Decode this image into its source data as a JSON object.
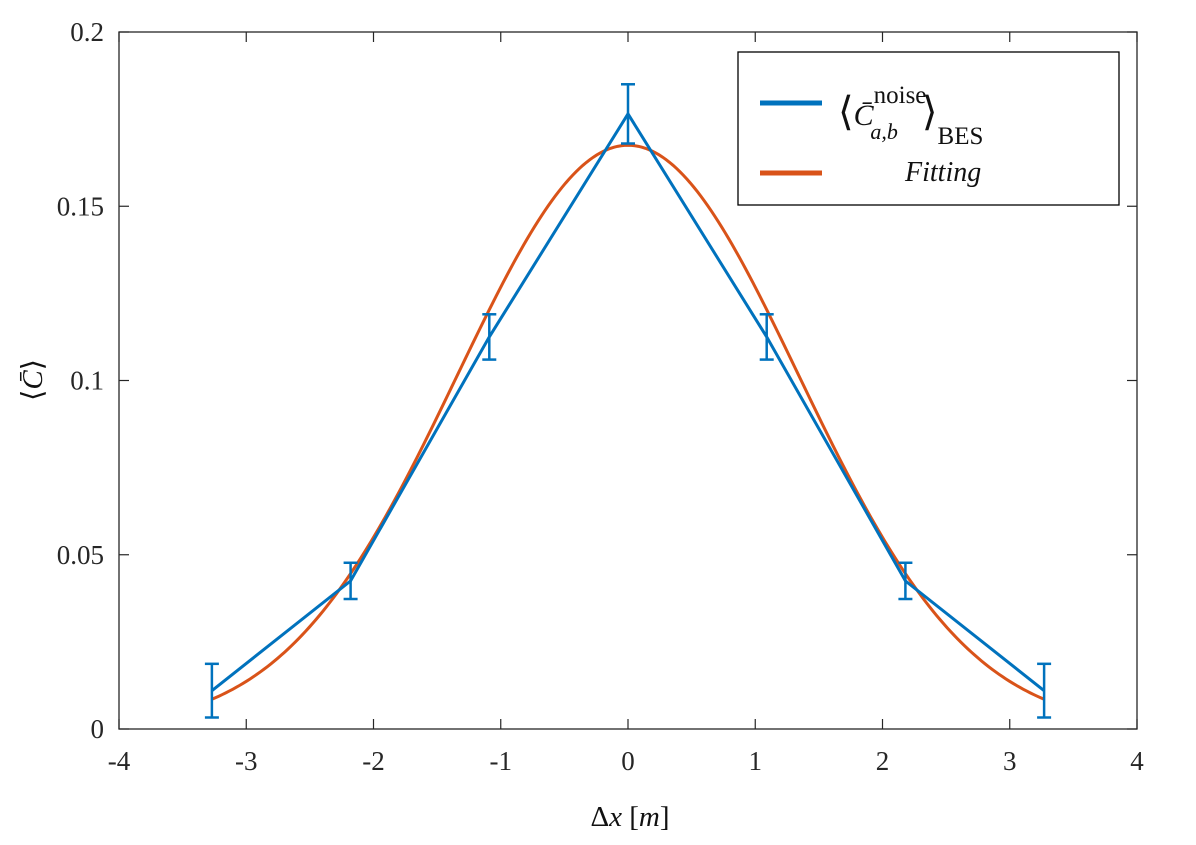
{
  "chart_data": {
    "type": "line",
    "xlabel": {
      "delta": "Δ",
      "var": "x",
      "unit": "m"
    },
    "ylabel": {
      "text": "C̄",
      "left": "⟨",
      "right": "⟩"
    },
    "xlim": [
      -4,
      4
    ],
    "ylim": [
      0,
      0.2
    ],
    "xticks": [
      -4,
      -3,
      -2,
      -1,
      0,
      1,
      2,
      3,
      4
    ],
    "yticks": [
      0,
      0.05,
      0.1,
      0.15,
      0.2
    ],
    "xtick_labels": [
      "-4",
      "-3",
      "-2",
      "-1",
      "0",
      "1",
      "2",
      "3",
      "4"
    ],
    "ytick_labels": [
      "0",
      "0.05",
      "0.1",
      "0.15",
      "0.2"
    ],
    "series": [
      {
        "name": "⟨C̄ noise a,b⟩ BES",
        "color": "#0072BD",
        "x": [
          -3.27,
          -2.18,
          -1.09,
          0,
          1.09,
          2.18,
          3.27
        ],
        "y": [
          0.011,
          0.0425,
          0.1125,
          0.1765,
          0.1125,
          0.0425,
          0.011
        ],
        "err": [
          0.0077,
          0.0052,
          0.0065,
          0.0085,
          0.0065,
          0.0052,
          0.0077
        ]
      },
      {
        "name": "Fitting",
        "color": "#D95319",
        "model": "gaussian",
        "amplitude": 0.1675,
        "sigma": 1.34,
        "x_range": [
          -3.27,
          3.27
        ]
      }
    ],
    "legend": {
      "position": "top-right",
      "entries": [
        {
          "main": "C̄",
          "sup": "noise",
          "sub": "a,b",
          "outer_sub": "BES",
          "color": "#0072BD"
        },
        {
          "text": "Fitting",
          "color": "#D95319"
        }
      ]
    }
  }
}
